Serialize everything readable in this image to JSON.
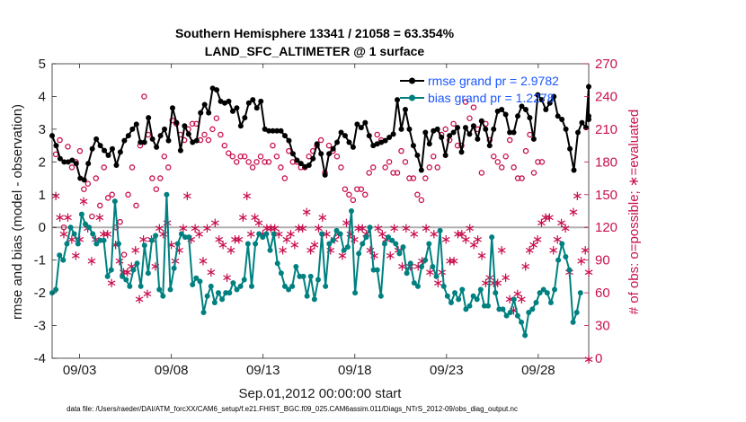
{
  "chart_data": {
    "type": "line",
    "title": "Southern Hemisphere 13341 / 21058 = 63.354%",
    "subtitle": "LAND_SFC_ALTIMETER @ 1 surface",
    "xlabel": "Sep.01,2012 00:00:00 start",
    "ylabel": "rmse and bias (model - observation)",
    "y2label": "# of obs: o=possible; ∗=evaluated",
    "footnote": "data file: /Users/raeder/DAI/ATM_forcXX/CAM6_setup/f.e21.FHIST_BGC.f09_025.CAM6assim.011/Diags_NTrS_2012-09/obs_diag_output.nc",
    "xlim": [
      1.5,
      30.75
    ],
    "ylim": [
      -4,
      5
    ],
    "y2lim": [
      0,
      270
    ],
    "x_ticks": [
      3,
      8,
      13,
      18,
      23,
      28
    ],
    "x_ticklabels": [
      "09/03",
      "09/08",
      "09/13",
      "09/18",
      "09/23",
      "09/28"
    ],
    "y_ticks": [
      -4,
      -3,
      -2,
      -1,
      0,
      1,
      2,
      3,
      4,
      5
    ],
    "y2_ticks": [
      0,
      30,
      60,
      90,
      120,
      150,
      180,
      210,
      240,
      270
    ],
    "colors": {
      "rmse": "#000000",
      "bias": "#008080",
      "obs": "#c8104e",
      "zero": "#b0b0b0",
      "legend_text": "#1a56ff"
    },
    "legend": [
      {
        "name": "rmse grand pr = 2.9782"
      },
      {
        "name": "bias grand pr = 1.2278"
      }
    ],
    "series": [
      {
        "name": "rmse",
        "axis": "left",
        "values": [
          2.8,
          2.5,
          2.1,
          2.0,
          2.0,
          2.05,
          1.95,
          1.5,
          1.45,
          1.95,
          2.4,
          2.7,
          2.5,
          2.35,
          2.2,
          2.4,
          1.9,
          2.3,
          2.65,
          2.8,
          3.0,
          3.15,
          2.6,
          2.6,
          3.35,
          2.7,
          2.45,
          2.8,
          3.0,
          2.65,
          3.65,
          3.2,
          2.35,
          3.1,
          2.85,
          2.6,
          2.65,
          3.5,
          3.75,
          3.5,
          4.25,
          4.2,
          3.85,
          3.8,
          3.85,
          3.55,
          3.65,
          3.1,
          3.35,
          3.8,
          3.9,
          3.65,
          3.85,
          3.0,
          2.95,
          2.95,
          2.95,
          2.95,
          2.8,
          2.65,
          2.25,
          2.05,
          1.95,
          1.85,
          1.9,
          2.1,
          2.55,
          2.25,
          1.6,
          2.25,
          2.4,
          2.6,
          2.9,
          2.8,
          2.6,
          2.45,
          3.15,
          3.05,
          3.2,
          2.8,
          2.5,
          2.55,
          2.6,
          2.65,
          2.75,
          2.85,
          3.9,
          3.0,
          3.6,
          3.0,
          2.5,
          2.2,
          1.75,
          2.9,
          2.55,
          2.95,
          3.0,
          2.75,
          2.2,
          2.8,
          2.9,
          3.05,
          2.3,
          3.05,
          2.85,
          3.1,
          2.7,
          3.25,
          3.0,
          2.5,
          3.0,
          3.55,
          3.6,
          3.45,
          2.9,
          2.9,
          3.4,
          3.7,
          3.6,
          3.35,
          2.7,
          4.05,
          3.9,
          3.6,
          3.8,
          4.0,
          3.4,
          3.3,
          3.0,
          2.4,
          1.75,
          2.9,
          3.2,
          3.05,
          4.3,
          3.4,
          3.3
        ],
        "x_start": 1.5,
        "x_step": 0.2188
      },
      {
        "name": "bias",
        "axis": "left",
        "values": [
          -2.0,
          -1.9,
          -0.85,
          -1.0,
          -0.5,
          0.0,
          -0.2,
          -0.5,
          0.4,
          0.1,
          0.0,
          -0.2,
          -0.5,
          -0.4,
          -0.4,
          -1.5,
          -1.3,
          0.8,
          -0.5,
          -1.5,
          -1.6,
          -1.8,
          -1.3,
          -1.1,
          -1.8,
          -0.55,
          -1.4,
          -0.4,
          -0.25,
          -1.9,
          -2.1,
          1.0,
          -1.9,
          -1.25,
          -0.5,
          -0.2,
          -0.3,
          -0.3,
          -1.75,
          -1.55,
          -1.65,
          -2.6,
          -2.1,
          -1.8,
          -2.3,
          -2.0,
          -2.2,
          -2.0,
          -2.0,
          -1.7,
          -1.9,
          -1.8,
          -1.6,
          -0.5,
          -1.8,
          -0.5,
          -0.2,
          -0.3,
          -0.2,
          -0.7,
          -0.2,
          -1.1,
          -1.4,
          -1.8,
          -1.9,
          -1.8,
          -1.2,
          -1.5,
          -1.5,
          -2.1,
          -1.5,
          -2.2,
          -1.6,
          -0.2,
          -1.8,
          -0.5,
          -0.4,
          -0.1,
          -0.2,
          -0.7,
          -0.6,
          0.5,
          -2.0,
          -0.8,
          -0.5,
          -0.3,
          0.0,
          -1.3,
          -1.3,
          -2.1,
          -0.5,
          -0.3,
          -0.4,
          -0.5,
          -0.8,
          -0.6,
          -1.4,
          -1.1,
          -1.7,
          -1.8,
          -1.2,
          -1.0,
          -0.5,
          -1.2,
          -1.5,
          -0.1,
          -1.8,
          -2.1,
          -2.3,
          -2.0,
          -2.2,
          -1.9,
          -2.5,
          -2.4,
          -2.1,
          -2.2,
          -1.9,
          -2.4,
          -2.4,
          -0.3,
          -2.0,
          -2.5,
          -2.5,
          -2.7,
          -2.6,
          -2.2,
          -2.7,
          -2.9,
          -3.3,
          -2.6,
          -2.5,
          -2.3,
          -2.0,
          -1.9,
          -2.0,
          -2.3,
          -1.9,
          -1.0,
          -0.5,
          -0.9,
          -1.3,
          -2.9,
          -2.6,
          -2.0
        ],
        "x_start": 1.5,
        "x_step": 0.2014
      },
      {
        "name": "obs possible (o)",
        "axis": "right",
        "x_start": 1.7,
        "x_step": 0.219,
        "values": [
          187,
          200,
          120,
          194,
          175,
          180,
          190,
          155,
          160,
          130,
          165,
          140,
          175,
          147,
          150,
          120,
          125,
          95,
          150,
          175,
          140,
          195,
          240,
          205,
          165,
          155,
          165,
          185,
          175,
          218,
          215,
          205,
          200,
          210,
          215,
          215,
          200,
          205,
          200,
          210,
          220,
          205,
          195,
          188,
          185,
          180,
          185,
          185,
          180,
          175,
          180,
          185,
          180,
          180,
          195,
          185,
          175,
          165,
          190,
          180,
          180,
          175,
          175,
          185,
          190,
          195,
          200,
          170,
          195,
          190,
          185,
          175,
          155,
          150,
          145,
          155,
          155,
          150,
          170,
          175,
          205,
          200,
          175,
          180,
          170,
          170,
          190,
          180,
          165,
          165,
          150,
          145,
          165,
          175,
          185,
          175,
          205,
          210,
          200,
          215,
          195,
          195,
          235,
          220,
          230,
          210,
          170,
          215,
          200,
          185,
          180,
          175,
          185,
          200,
          175,
          165,
          165,
          190,
          205,
          170,
          180,
          180
        ]
      },
      {
        "name": "obs evaluated (∗)",
        "axis": "right",
        "x_start": 1.7,
        "x_step": 0.217,
        "values": [
          150,
          130,
          115,
          130,
          110,
          95,
          110,
          145,
          120,
          90,
          110,
          130,
          115,
          115,
          70,
          105,
          90,
          80,
          80,
          85,
          100,
          55,
          110,
          60,
          110,
          85,
          120,
          115,
          125,
          105,
          90,
          100,
          120,
          150,
          110,
          120,
          115,
          90,
          120,
          80,
          125,
          110,
          105,
          75,
          100,
          110,
          110,
          130,
          150,
          115,
          130,
          125,
          115,
          120,
          120,
          120,
          115,
          100,
          110,
          115,
          105,
          120,
          120,
          135,
          100,
          105,
          120,
          130,
          115,
          100,
          110,
          115,
          95,
          125,
          115,
          110,
          120,
          120,
          115,
          100,
          95,
          120,
          115,
          110,
          95,
          120,
          100,
          85,
          120,
          85,
          115,
          85,
          90,
          120,
          80,
          115,
          70,
          80,
          110,
          90,
          90,
          115,
          115,
          110,
          120,
          105,
          110,
          95,
          70,
          75,
          70,
          70,
          100,
          75,
          55,
          45,
          60,
          55,
          85,
          100,
          105,
          110,
          125,
          130,
          130,
          100,
          110,
          125,
          120,
          80,
          135,
          150,
          90,
          100,
          80,
          0
        ]
      }
    ]
  }
}
